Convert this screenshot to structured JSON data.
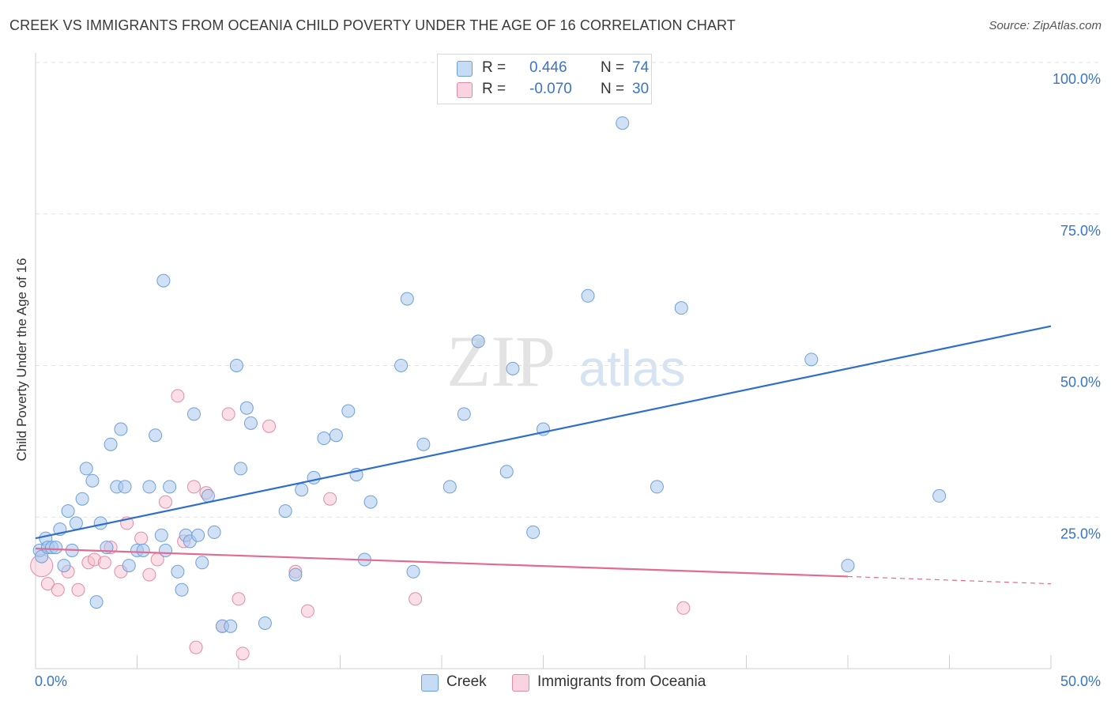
{
  "header": {
    "title": "CREEK VS IMMIGRANTS FROM OCEANIA CHILD POVERTY UNDER THE AGE OF 16 CORRELATION CHART",
    "source": "Source: ZipAtlas.com"
  },
  "watermark": {
    "zip": "ZIP",
    "atlas": "atlas"
  },
  "legend_top": {
    "rows": [
      {
        "r_label": "R =",
        "r_value": "0.446",
        "n_label": "N =",
        "n_value": "74",
        "color": "#a9c8ef"
      },
      {
        "r_label": "R =",
        "r_value": "-0.070",
        "n_label": "N =",
        "n_value": "30",
        "color": "#f6bfd0"
      }
    ]
  },
  "legend_bottom": {
    "creek": "Creek",
    "oceania": "Immigrants from Oceania"
  },
  "colors": {
    "creek_fill": "#a9c8ef",
    "creek_stroke": "#6f9fd8",
    "creek_line": "#2f6fca",
    "oceania_fill": "#f6bfd0",
    "oceania_stroke": "#e48aa8",
    "oceania_line": "#e46a92",
    "tick_label": "#3a74c9",
    "grid": "#e2e2e2"
  },
  "chart_data": {
    "type": "scatter",
    "title": "CREEK VS IMMIGRANTS FROM OCEANIA CHILD POVERTY UNDER THE AGE OF 16 CORRELATION CHART",
    "xlabel": "",
    "ylabel": "Child Poverty Under the Age of 16",
    "xlim": [
      0,
      50
    ],
    "ylim": [
      0,
      100
    ],
    "x_tick_labels": [
      "0.0%",
      "50.0%"
    ],
    "y_ticks": [
      25,
      50,
      75,
      100
    ],
    "y_tick_labels": [
      "25.0%",
      "50.0%",
      "75.0%",
      "100.0%"
    ],
    "grid": true,
    "series": [
      {
        "name": "Creek",
        "r": 0.446,
        "n": 74,
        "trend": {
          "x": [
            0,
            50
          ],
          "y": [
            21.5,
            56.5
          ]
        },
        "points": [
          [
            0.2,
            19.5
          ],
          [
            0.3,
            18.5
          ],
          [
            0.5,
            21.5
          ],
          [
            0.6,
            20
          ],
          [
            0.8,
            20
          ],
          [
            1.0,
            20
          ],
          [
            1.2,
            23
          ],
          [
            1.4,
            17
          ],
          [
            1.6,
            26
          ],
          [
            1.8,
            19.5
          ],
          [
            2.0,
            24
          ],
          [
            2.3,
            28
          ],
          [
            2.5,
            33
          ],
          [
            2.8,
            31
          ],
          [
            3.0,
            11
          ],
          [
            3.2,
            24
          ],
          [
            3.5,
            20
          ],
          [
            3.7,
            37
          ],
          [
            4.0,
            30
          ],
          [
            4.2,
            39.5
          ],
          [
            4.4,
            30
          ],
          [
            4.6,
            17
          ],
          [
            5.0,
            19.5
          ],
          [
            5.3,
            19.5
          ],
          [
            5.6,
            30
          ],
          [
            5.9,
            38.5
          ],
          [
            6.2,
            22
          ],
          [
            6.4,
            19.5
          ],
          [
            6.6,
            30
          ],
          [
            7.0,
            16
          ],
          [
            7.2,
            13
          ],
          [
            7.4,
            22
          ],
          [
            7.6,
            21
          ],
          [
            8.0,
            22
          ],
          [
            8.2,
            17.5
          ],
          [
            8.5,
            28.5
          ],
          [
            8.8,
            22.5
          ],
          [
            9.2,
            7
          ],
          [
            9.6,
            7
          ],
          [
            10.1,
            33
          ],
          [
            10.4,
            43
          ],
          [
            10.6,
            40.5
          ],
          [
            11.3,
            7.5
          ],
          [
            12.3,
            26
          ],
          [
            12.8,
            15.5
          ],
          [
            13.1,
            29.5
          ],
          [
            13.7,
            31.5
          ],
          [
            14.2,
            38
          ],
          [
            14.8,
            38.5
          ],
          [
            15.4,
            42.5
          ],
          [
            15.8,
            32
          ],
          [
            16.2,
            18
          ],
          [
            16.5,
            27.5
          ],
          [
            18.0,
            50
          ],
          [
            18.3,
            61
          ],
          [
            18.6,
            16
          ],
          [
            19.1,
            37
          ],
          [
            20.4,
            30
          ],
          [
            21.1,
            42
          ],
          [
            21.8,
            54
          ],
          [
            23.2,
            32.5
          ],
          [
            23.5,
            49.5
          ],
          [
            24.5,
            22.5
          ],
          [
            25.0,
            39.5
          ],
          [
            27.2,
            61.5
          ],
          [
            28.9,
            90
          ],
          [
            30.6,
            30
          ],
          [
            31.8,
            59.5
          ],
          [
            6.3,
            64
          ],
          [
            9.9,
            50
          ],
          [
            7.8,
            42
          ],
          [
            38.2,
            51
          ],
          [
            40.0,
            17
          ],
          [
            44.5,
            28.5
          ]
        ]
      },
      {
        "name": "Immigrants from Oceania",
        "r": -0.07,
        "n": 30,
        "trend": {
          "x": [
            0,
            40
          ],
          "y": [
            19.8,
            15.2
          ]
        },
        "trend_extension": {
          "x": [
            40,
            50
          ],
          "y": [
            15.2,
            14.0
          ]
        },
        "points": [
          [
            0.3,
            17
          ],
          [
            0.6,
            14
          ],
          [
            1.1,
            13
          ],
          [
            1.6,
            16
          ],
          [
            2.1,
            13
          ],
          [
            2.6,
            17.5
          ],
          [
            2.9,
            18
          ],
          [
            3.4,
            17.5
          ],
          [
            3.7,
            20
          ],
          [
            4.2,
            16
          ],
          [
            4.5,
            24
          ],
          [
            5.2,
            21.5
          ],
          [
            5.6,
            15.5
          ],
          [
            6.0,
            18
          ],
          [
            6.4,
            27.5
          ],
          [
            7.0,
            45
          ],
          [
            7.3,
            21
          ],
          [
            7.9,
            3.5
          ],
          [
            7.8,
            30
          ],
          [
            8.4,
            29
          ],
          [
            9.2,
            7
          ],
          [
            9.5,
            42
          ],
          [
            10.0,
            11.5
          ],
          [
            10.2,
            2.5
          ],
          [
            11.5,
            40
          ],
          [
            12.8,
            16
          ],
          [
            13.4,
            9.5
          ],
          [
            14.5,
            28
          ],
          [
            18.7,
            11.5
          ],
          [
            31.9,
            10
          ]
        ]
      }
    ]
  }
}
